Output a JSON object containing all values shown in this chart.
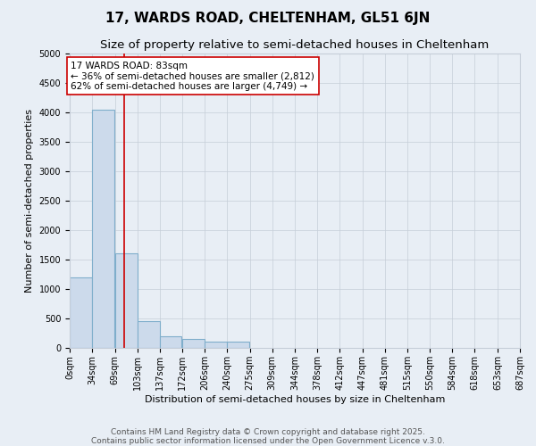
{
  "title": "17, WARDS ROAD, CHELTENHAM, GL51 6JN",
  "subtitle": "Size of property relative to semi-detached houses in Cheltenham",
  "xlabel": "Distribution of semi-detached houses by size in Cheltenham",
  "ylabel": "Number of semi-detached properties",
  "property_size": 83,
  "bin_edges": [
    0,
    34,
    69,
    103,
    137,
    172,
    206,
    240,
    275,
    309,
    344,
    378,
    412,
    447,
    481,
    515,
    550,
    584,
    618,
    653,
    687
  ],
  "bin_labels": [
    "0sqm",
    "34sqm",
    "69sqm",
    "103sqm",
    "137sqm",
    "172sqm",
    "206sqm",
    "240sqm",
    "275sqm",
    "309sqm",
    "344sqm",
    "378sqm",
    "412sqm",
    "447sqm",
    "481sqm",
    "515sqm",
    "550sqm",
    "584sqm",
    "618sqm",
    "653sqm",
    "687sqm"
  ],
  "counts": [
    1200,
    4050,
    1600,
    450,
    200,
    150,
    100,
    100,
    0,
    0,
    0,
    0,
    0,
    0,
    0,
    0,
    0,
    0,
    0,
    0
  ],
  "bar_color": "#ccdaeb",
  "bar_edge_color": "#7faecb",
  "vline_color": "#cc0000",
  "vline_x": 83,
  "annotation_text": "17 WARDS ROAD: 83sqm\n← 36% of semi-detached houses are smaller (2,812)\n62% of semi-detached houses are larger (4,749) →",
  "annotation_box_color": "#ffffff",
  "annotation_box_edge": "#cc0000",
  "ylim": [
    0,
    5000
  ],
  "yticks": [
    0,
    500,
    1000,
    1500,
    2000,
    2500,
    3000,
    3500,
    4000,
    4500,
    5000
  ],
  "background_color": "#e8eef5",
  "grid_color": "#c5cdd8",
  "footer_text": "Contains HM Land Registry data © Crown copyright and database right 2025.\nContains public sector information licensed under the Open Government Licence v.3.0.",
  "title_fontsize": 11,
  "subtitle_fontsize": 9.5,
  "label_fontsize": 8,
  "tick_fontsize": 7,
  "footer_fontsize": 6.5,
  "annotation_fontsize": 7.5
}
